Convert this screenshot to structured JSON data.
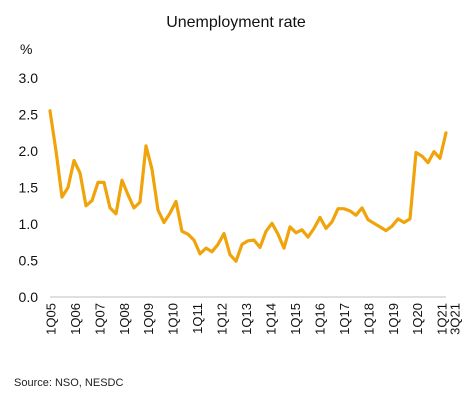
{
  "chart_data": {
    "type": "line",
    "title": "Unemployment rate",
    "unit_label": "%",
    "source": "Source: NSO, NESDC",
    "ylim": [
      0,
      3.0
    ],
    "yticks": [
      "0.0",
      "0.5",
      "1.0",
      "1.5",
      "2.0",
      "2.5",
      "3.0"
    ],
    "xtick_labels": [
      "1Q05",
      "1Q06",
      "1Q07",
      "1Q08",
      "1Q09",
      "1Q10",
      "1Q11",
      "1Q12",
      "1Q13",
      "1Q14",
      "1Q15",
      "1Q16",
      "1Q17",
      "1Q18",
      "1Q19",
      "1Q20",
      "1Q21",
      "3Q21"
    ],
    "x_start": "1Q05",
    "x_end": "3Q21",
    "grid": false,
    "legend": "none",
    "line_color": "#F0A30A",
    "series": [
      {
        "values": [
          2.55,
          2.0,
          1.37,
          1.5,
          1.87,
          1.7,
          1.25,
          1.32,
          1.57,
          1.57,
          1.22,
          1.14,
          1.6,
          1.4,
          1.22,
          1.3,
          2.07,
          1.75,
          1.19,
          1.02,
          1.15,
          1.31,
          0.9,
          0.86,
          0.78,
          0.59,
          0.67,
          0.62,
          0.72,
          0.87,
          0.58,
          0.49,
          0.72,
          0.77,
          0.78,
          0.68,
          0.9,
          1.01,
          0.86,
          0.67,
          0.96,
          0.88,
          0.92,
          0.82,
          0.94,
          1.09,
          0.94,
          1.03,
          1.21,
          1.21,
          1.18,
          1.12,
          1.22,
          1.06,
          1.01,
          0.96,
          0.91,
          0.97,
          1.07,
          1.02,
          1.07,
          1.98,
          1.93,
          1.84,
          1.99,
          1.9,
          2.25
        ]
      }
    ]
  }
}
